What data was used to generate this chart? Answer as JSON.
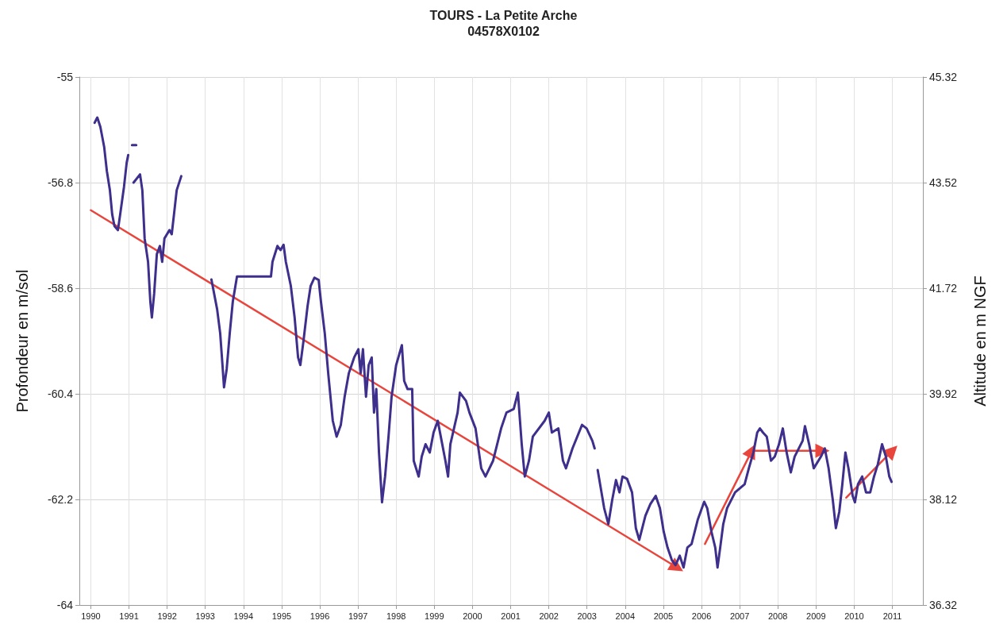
{
  "chart_data": {
    "type": "line",
    "title": "TOURS - La Petite Arche",
    "subtitle": "04578X0102",
    "ylabel": "Profondeur en m/sol",
    "y2label": "Altitude en m NGF",
    "xlim": [
      1989.7,
      2011.8
    ],
    "xticks": [
      1990,
      1991,
      1992,
      1993,
      1994,
      1995,
      1996,
      1997,
      1998,
      1999,
      2000,
      2001,
      2002,
      2003,
      2004,
      2005,
      2006,
      2007,
      2008,
      2009,
      2010,
      2011
    ],
    "ylim": [
      -64,
      -55
    ],
    "yticks": [
      -64,
      -62.2,
      -60.4,
      -58.6,
      -56.8,
      -55
    ],
    "y2lim": [
      36.32,
      45.32
    ],
    "y2ticks": [
      36.32,
      38.12,
      39.92,
      41.72,
      43.52,
      45.32
    ],
    "grid": true,
    "line_style": "solid",
    "series": [
      {
        "color": "#3f2f8c",
        "marker": "none",
        "x": [
          1990.1,
          1990.17,
          1990.25,
          1990.35,
          1990.42,
          1990.5,
          1990.56,
          1990.62,
          1990.71,
          1990.77,
          1990.87,
          1990.94,
          1990.98,
          null,
          1991.08,
          1991.19,
          null,
          1991.12,
          1991.29,
          1991.35,
          1991.41,
          1991.5,
          1991.56,
          1991.6,
          1991.66,
          1991.73,
          1991.81,
          1991.87,
          1991.93,
          1992.06,
          1992.12,
          1992.18,
          1992.25,
          1992.37,
          null,
          1993.16,
          1993.31,
          1993.39,
          1993.45,
          1993.49,
          1993.56,
          1993.64,
          1993.72,
          1993.83,
          1994.72,
          1994.76,
          1994.89,
          1994.97,
          1995.05,
          1995.11,
          1995.24,
          1995.34,
          1995.43,
          1995.49,
          1995.57,
          1995.68,
          1995.76,
          1995.86,
          1995.97,
          1996.03,
          1996.13,
          1996.22,
          1996.34,
          1996.44,
          1996.55,
          1996.65,
          1996.76,
          1996.9,
          1997.01,
          1997.07,
          1997.13,
          1997.21,
          1997.28,
          1997.36,
          1997.42,
          1997.48,
          1997.55,
          1997.63,
          1997.71,
          1997.8,
          1997.88,
          1998.0,
          1998.15,
          1998.21,
          1998.3,
          1998.42,
          1998.46,
          1998.59,
          1998.67,
          1998.77,
          1998.88,
          1998.98,
          1999.09,
          1999.19,
          1999.29,
          1999.36,
          1999.42,
          1999.61,
          1999.67,
          1999.83,
          1999.92,
          2000.08,
          2000.23,
          2000.34,
          2000.54,
          2000.75,
          2000.89,
          2001.08,
          2001.19,
          2001.29,
          2001.37,
          2001.48,
          2001.58,
          2001.89,
          2002.0,
          2002.08,
          2002.25,
          2002.37,
          2002.45,
          2002.62,
          2002.87,
          2002.99,
          2003.14,
          2003.2,
          null,
          2003.28,
          2003.45,
          2003.56,
          2003.66,
          2003.76,
          2003.85,
          2003.93,
          2004.05,
          2004.18,
          2004.28,
          2004.37,
          2004.53,
          2004.66,
          2004.8,
          2004.91,
          2005.01,
          2005.11,
          2005.22,
          2005.32,
          2005.43,
          2005.53,
          2005.63,
          2005.74,
          2005.9,
          2006.07,
          2006.15,
          2006.26,
          2006.36,
          2006.42,
          2006.49,
          2006.57,
          2006.67,
          2006.88,
          2007.13,
          2007.24,
          2007.36,
          2007.46,
          2007.53,
          2007.61,
          2007.71,
          2007.82,
          2007.92,
          2008.03,
          2008.13,
          2008.23,
          2008.34,
          2008.44,
          2008.65,
          2008.71,
          2008.82,
          2008.94,
          2009.13,
          2009.23,
          2009.33,
          2009.44,
          2009.52,
          2009.61,
          2009.69,
          2009.77,
          2009.85,
          2009.96,
          2010.02,
          2010.1,
          2010.21,
          2010.31,
          2010.42,
          2010.52,
          2010.62,
          2010.73,
          2010.83,
          2010.92,
          2010.98
        ],
        "values": [
          -55.78,
          -55.69,
          -55.85,
          -56.19,
          -56.6,
          -56.93,
          -57.34,
          -57.54,
          -57.61,
          -57.34,
          -56.87,
          -56.46,
          -56.33,
          null,
          -56.16,
          -56.16,
          null,
          -56.8,
          -56.66,
          -56.93,
          -57.75,
          -58.15,
          -58.83,
          -59.1,
          -58.69,
          -58.02,
          -57.88,
          -58.15,
          -57.75,
          -57.61,
          -57.68,
          -57.34,
          -56.93,
          -56.69,
          null,
          -58.45,
          -58.96,
          -59.37,
          -59.91,
          -60.29,
          -59.98,
          -59.37,
          -58.83,
          -58.4,
          -58.4,
          -58.15,
          -57.88,
          -57.95,
          -57.86,
          -58.15,
          -58.56,
          -59.1,
          -59.78,
          -59.91,
          -59.51,
          -58.9,
          -58.56,
          -58.42,
          -58.46,
          -58.83,
          -59.37,
          -60.05,
          -60.86,
          -61.13,
          -60.93,
          -60.45,
          -60.05,
          -59.78,
          -59.64,
          -60.05,
          -59.64,
          -60.45,
          -59.91,
          -59.78,
          -60.72,
          -60.32,
          -61.4,
          -62.25,
          -61.81,
          -61.13,
          -60.45,
          -59.91,
          -59.57,
          -60.18,
          -60.32,
          -60.32,
          -61.54,
          -61.81,
          -61.47,
          -61.26,
          -61.4,
          -61.06,
          -60.86,
          -61.2,
          -61.54,
          -61.81,
          -61.26,
          -60.72,
          -60.38,
          -60.52,
          -60.72,
          -60.99,
          -61.67,
          -61.81,
          -61.54,
          -60.99,
          -60.72,
          -60.66,
          -60.38,
          -61.26,
          -61.81,
          -61.54,
          -61.13,
          -60.86,
          -60.72,
          -61.06,
          -60.99,
          -61.54,
          -61.67,
          -61.33,
          -60.93,
          -60.99,
          -61.2,
          -61.33,
          null,
          -61.7,
          -62.35,
          -62.62,
          -62.21,
          -61.87,
          -62.08,
          -61.81,
          -61.85,
          -62.08,
          -62.69,
          -62.89,
          -62.48,
          -62.28,
          -62.14,
          -62.35,
          -62.75,
          -63.02,
          -63.23,
          -63.32,
          -63.16,
          -63.36,
          -63.02,
          -62.96,
          -62.55,
          -62.24,
          -62.35,
          -62.75,
          -63.02,
          -63.36,
          -63.02,
          -62.62,
          -62.35,
          -62.08,
          -61.94,
          -61.67,
          -61.4,
          -61.06,
          -60.99,
          -61.06,
          -61.13,
          -61.54,
          -61.47,
          -61.26,
          -60.99,
          -61.4,
          -61.74,
          -61.47,
          -61.2,
          -60.95,
          -61.26,
          -61.67,
          -61.47,
          -61.33,
          -61.67,
          -62.21,
          -62.69,
          -62.41,
          -61.94,
          -61.4,
          -61.67,
          -62.14,
          -62.25,
          -61.94,
          -61.81,
          -62.08,
          -62.08,
          -61.81,
          -61.6,
          -61.26,
          -61.47,
          -61.81,
          -61.9
        ]
      },
      {
        "color": "#e8453c",
        "marker": "triangle",
        "x": [
          1990.0,
          2005.36
        ],
        "values": [
          -57.27,
          -63.36
        ]
      },
      {
        "color": "#e8453c",
        "marker": "triangle",
        "x": [
          2006.09,
          2007.32
        ],
        "values": [
          -62.96,
          -61.37
        ]
      },
      {
        "color": "#e8453c",
        "marker": "triangle",
        "x": [
          2007.32,
          2009.17
        ],
        "values": [
          -61.37,
          -61.37
        ]
      },
      {
        "color": "#e8453c",
        "marker": "triangle",
        "x": [
          2009.79,
          2011.0
        ],
        "values": [
          -62.17,
          -61.37
        ]
      }
    ]
  }
}
